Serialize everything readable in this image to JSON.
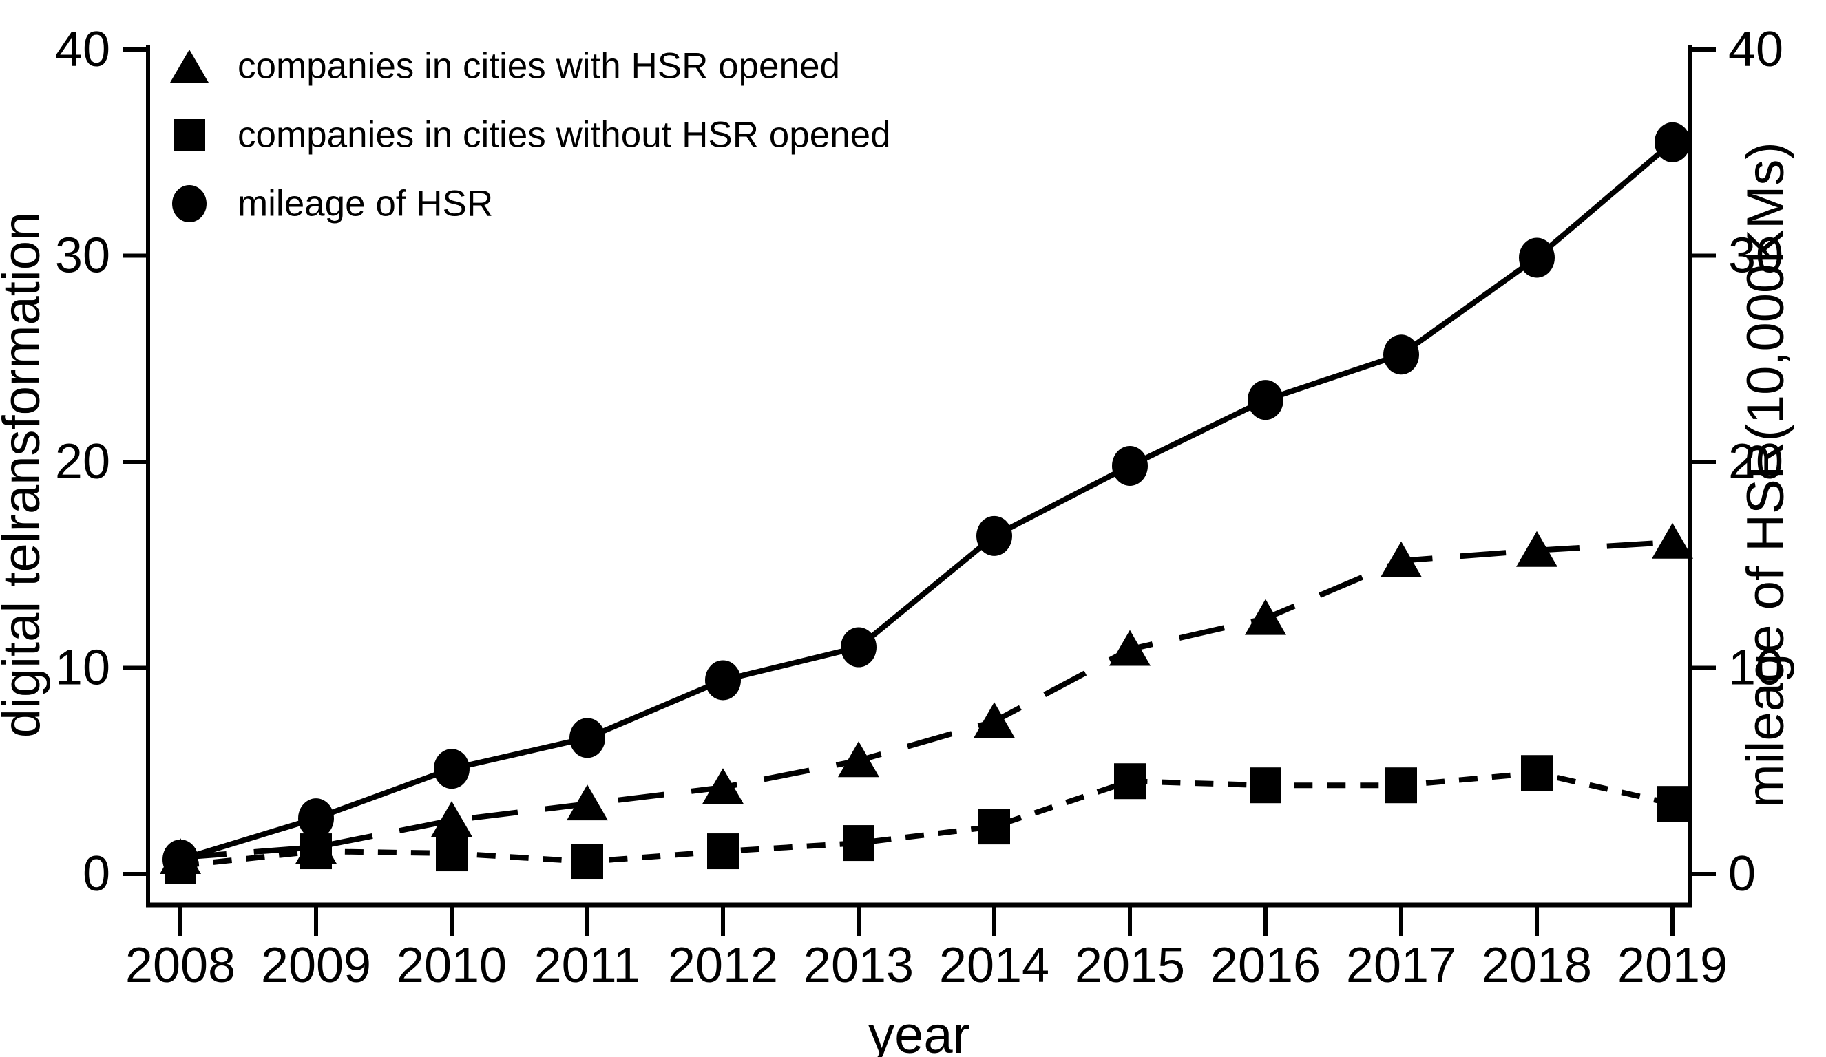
{
  "figure": {
    "background": "#ffffff",
    "ink_color": "#000000"
  },
  "legend": {
    "position": "top-left",
    "items": [
      {
        "label": "companies in cities with HSR opened",
        "marker": "triangle-icon"
      },
      {
        "label": "companies in cities without HSR opened",
        "marker": "square-icon"
      },
      {
        "label": "mileage of HSR",
        "marker": "circle-icon"
      }
    ]
  },
  "axes": {
    "x": {
      "title": "year",
      "tick_labels": [
        "2008",
        "2009",
        "2010",
        "2011",
        "2012",
        "2013",
        "2014",
        "2015",
        "2016",
        "2017",
        "2018",
        "2019"
      ]
    },
    "left": {
      "title": "digital telransformation",
      "tick_labels": [
        "0",
        "10",
        "20",
        "30",
        "40"
      ],
      "range": [
        0,
        40
      ]
    },
    "right": {
      "title": "mileage of HSR(10,000KMs)",
      "tick_labels": [
        "0",
        "10",
        "20",
        "30",
        "40"
      ],
      "range": [
        0,
        40
      ]
    }
  },
  "chart_data": {
    "type": "line",
    "title": "",
    "xlabel": "year",
    "ylabel_left": "digital telransformation",
    "ylabel_right": "mileage of HSR(10,000KMs)",
    "x": [
      2008,
      2009,
      2010,
      2011,
      2012,
      2013,
      2014,
      2015,
      2016,
      2017,
      2018,
      2019
    ],
    "ylim": [
      0,
      40
    ],
    "yticks": [
      0,
      10,
      20,
      30,
      40
    ],
    "grid": false,
    "legend_position": "top-left",
    "series": [
      {
        "name": "mileage of HSR",
        "marker": "circle",
        "line_style": "solid",
        "y_axis": "right",
        "values": [
          0.7,
          2.7,
          5.1,
          6.6,
          9.4,
          11.0,
          16.4,
          19.8,
          23.0,
          25.2,
          29.9,
          35.5
        ]
      },
      {
        "name": "companies in cities with HSR opened",
        "marker": "triangle",
        "line_style": "long-dash",
        "y_axis": "left",
        "values": [
          0.8,
          1.3,
          2.6,
          3.4,
          4.2,
          5.5,
          7.4,
          10.9,
          12.4,
          15.2,
          15.7,
          16.1
        ]
      },
      {
        "name": "companies in cities without HSR opened",
        "marker": "square",
        "line_style": "short-dash",
        "y_axis": "left",
        "values": [
          0.4,
          1.1,
          1.0,
          0.6,
          1.1,
          1.5,
          2.3,
          4.5,
          4.3,
          4.3,
          4.9,
          3.4
        ]
      }
    ]
  }
}
